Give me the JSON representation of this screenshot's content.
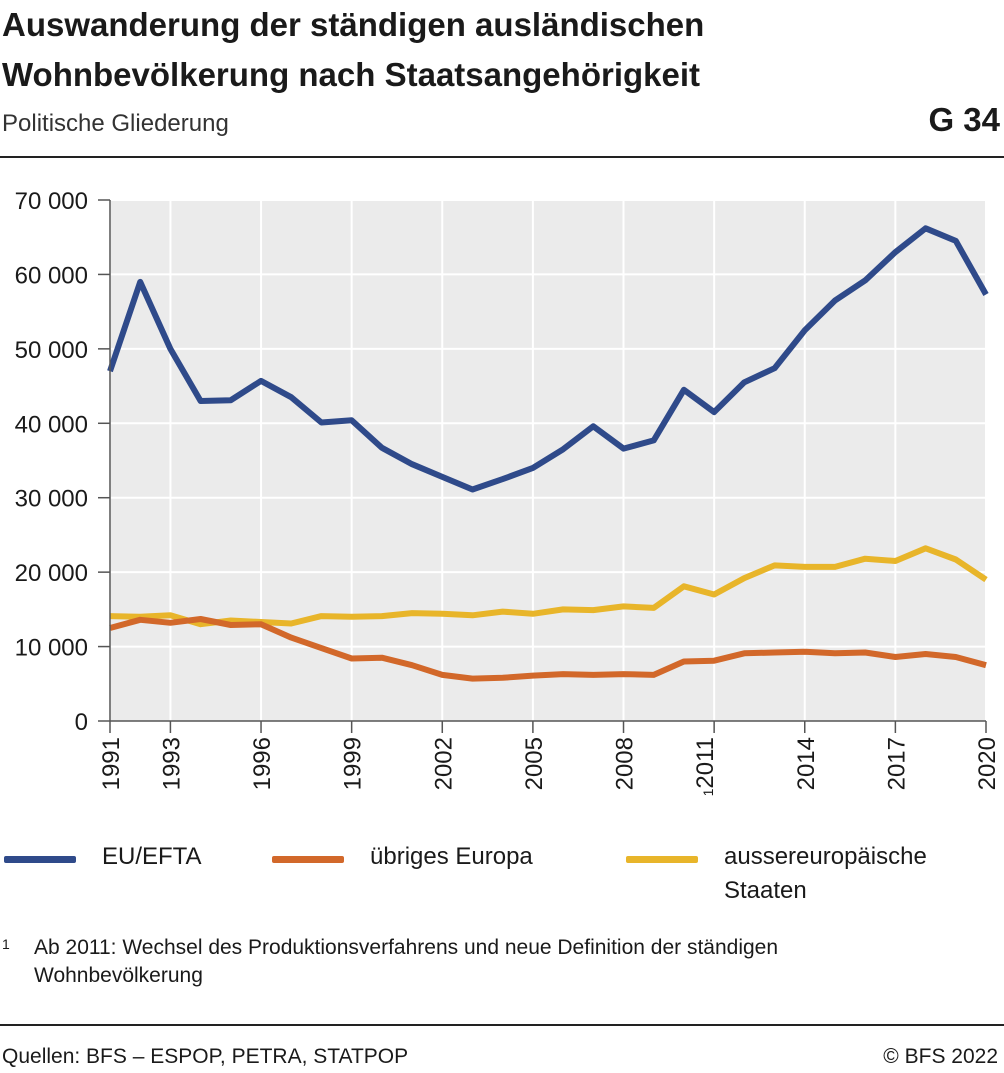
{
  "header": {
    "title_line1": "Auswanderung der ständigen ausländischen",
    "title_line2": "Wohnbevölkerung nach Staatsangehörigkeit",
    "subtitle": "Politische Gliederung",
    "graphic_number": "G 34"
  },
  "chart_data": {
    "type": "line",
    "x": [
      1991,
      1992,
      1993,
      1994,
      1995,
      1996,
      1997,
      1998,
      1999,
      2000,
      2001,
      2002,
      2003,
      2004,
      2005,
      2006,
      2007,
      2008,
      2009,
      2010,
      2011,
      2012,
      2013,
      2014,
      2015,
      2016,
      2017,
      2018,
      2019,
      2020
    ],
    "x_tick_labels": [
      {
        "year": 1991,
        "label": "1991",
        "sup": ""
      },
      {
        "year": 1993,
        "label": "1993",
        "sup": ""
      },
      {
        "year": 1996,
        "label": "1996",
        "sup": ""
      },
      {
        "year": 1999,
        "label": "1999",
        "sup": ""
      },
      {
        "year": 2002,
        "label": "2002",
        "sup": ""
      },
      {
        "year": 2005,
        "label": "2005",
        "sup": ""
      },
      {
        "year": 2008,
        "label": "2008",
        "sup": ""
      },
      {
        "year": 2011,
        "label": "2011",
        "sup": "1"
      },
      {
        "year": 2014,
        "label": "2014",
        "sup": ""
      },
      {
        "year": 2017,
        "label": "2017",
        "sup": ""
      },
      {
        "year": 2020,
        "label": "2020",
        "sup": ""
      }
    ],
    "y_ticks": [
      {
        "value": 0,
        "label": "0"
      },
      {
        "value": 10000,
        "label": "10 000"
      },
      {
        "value": 20000,
        "label": "20 000"
      },
      {
        "value": 30000,
        "label": "30 000"
      },
      {
        "value": 40000,
        "label": "40 000"
      },
      {
        "value": 50000,
        "label": "50 000"
      },
      {
        "value": 60000,
        "label": "60 000"
      },
      {
        "value": 70000,
        "label": "70 000"
      }
    ],
    "xlim": [
      1991,
      2020
    ],
    "ylim": [
      0,
      70000
    ],
    "grid": true,
    "plot_background": "#ebebeb",
    "legend_position": "bottom",
    "series": [
      {
        "name": "EU/EFTA",
        "color": "#2f4a8a",
        "values": [
          47000,
          59000,
          50000,
          43000,
          43100,
          45700,
          43500,
          40100,
          40400,
          36700,
          34500,
          32800,
          31100,
          32500,
          34000,
          36500,
          39600,
          36600,
          37700,
          44500,
          41500,
          45500,
          47400,
          52500,
          56500,
          59200,
          63000,
          66200,
          64500,
          57300
        ]
      },
      {
        "name": "übriges Europa",
        "color": "#d2682a",
        "values": [
          12500,
          13600,
          13200,
          13700,
          12900,
          13000,
          11200,
          9800,
          8400,
          8500,
          7500,
          6200,
          5700,
          5800,
          6100,
          6300,
          6200,
          6300,
          6200,
          8000,
          8100,
          9100,
          9200,
          9300,
          9100,
          9200,
          8600,
          9000,
          8600,
          7500
        ]
      },
      {
        "name": "aussereuropäische Staaten",
        "color": "#e8b52a",
        "values": [
          14100,
          14000,
          14200,
          13000,
          13500,
          13300,
          13100,
          14100,
          14000,
          14100,
          14500,
          14400,
          14200,
          14700,
          14400,
          15000,
          14900,
          15400,
          15200,
          18100,
          17000,
          19200,
          20900,
          20700,
          20700,
          21800,
          21500,
          23200,
          21700,
          19000
        ]
      }
    ]
  },
  "legend": {
    "items": [
      {
        "label": "EU/EFTA",
        "color": "#2f4a8a"
      },
      {
        "label": "übriges Europa",
        "color": "#d2682a"
      },
      {
        "label": "aussereuropäische Staaten",
        "color": "#e8b52a"
      }
    ]
  },
  "footnote": {
    "mark": "1",
    "text": "Ab 2011: Wechsel des Produktionsverfahrens und neue Definition der ständigen Wohnbevölkerung"
  },
  "footer": {
    "sources": "Quellen: BFS – ESPOP, PETRA, STATPOP",
    "copyright": "© BFS 2022"
  }
}
